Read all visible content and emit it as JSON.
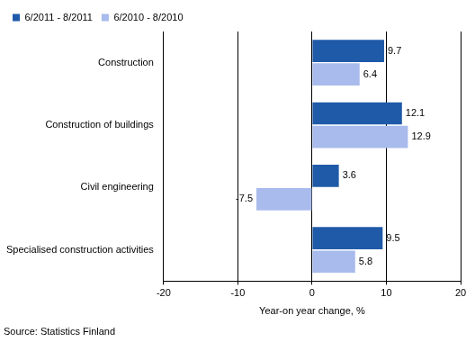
{
  "chart_data": {
    "type": "bar",
    "orientation": "horizontal",
    "categories": [
      "Construction",
      "Construction of buildings",
      "Civil engineering",
      "Specialised construction activities"
    ],
    "series": [
      {
        "name": "6/2011 - 8/2011",
        "color": "#1f5aa8",
        "values": [
          9.7,
          12.1,
          3.6,
          9.5
        ]
      },
      {
        "name": "6/2010 - 8/2010",
        "color": "#a9bbec",
        "values": [
          6.4,
          12.9,
          -7.5,
          5.8
        ]
      }
    ],
    "x_label": "Year-on year change, %",
    "annotations": [
      "Source: Statistics Finland"
    ],
    "xlim": [
      -20,
      20
    ],
    "xticks": [
      -20,
      -10,
      0,
      10,
      20
    ],
    "grid": true,
    "legend": "top left",
    "data_labels": true
  }
}
